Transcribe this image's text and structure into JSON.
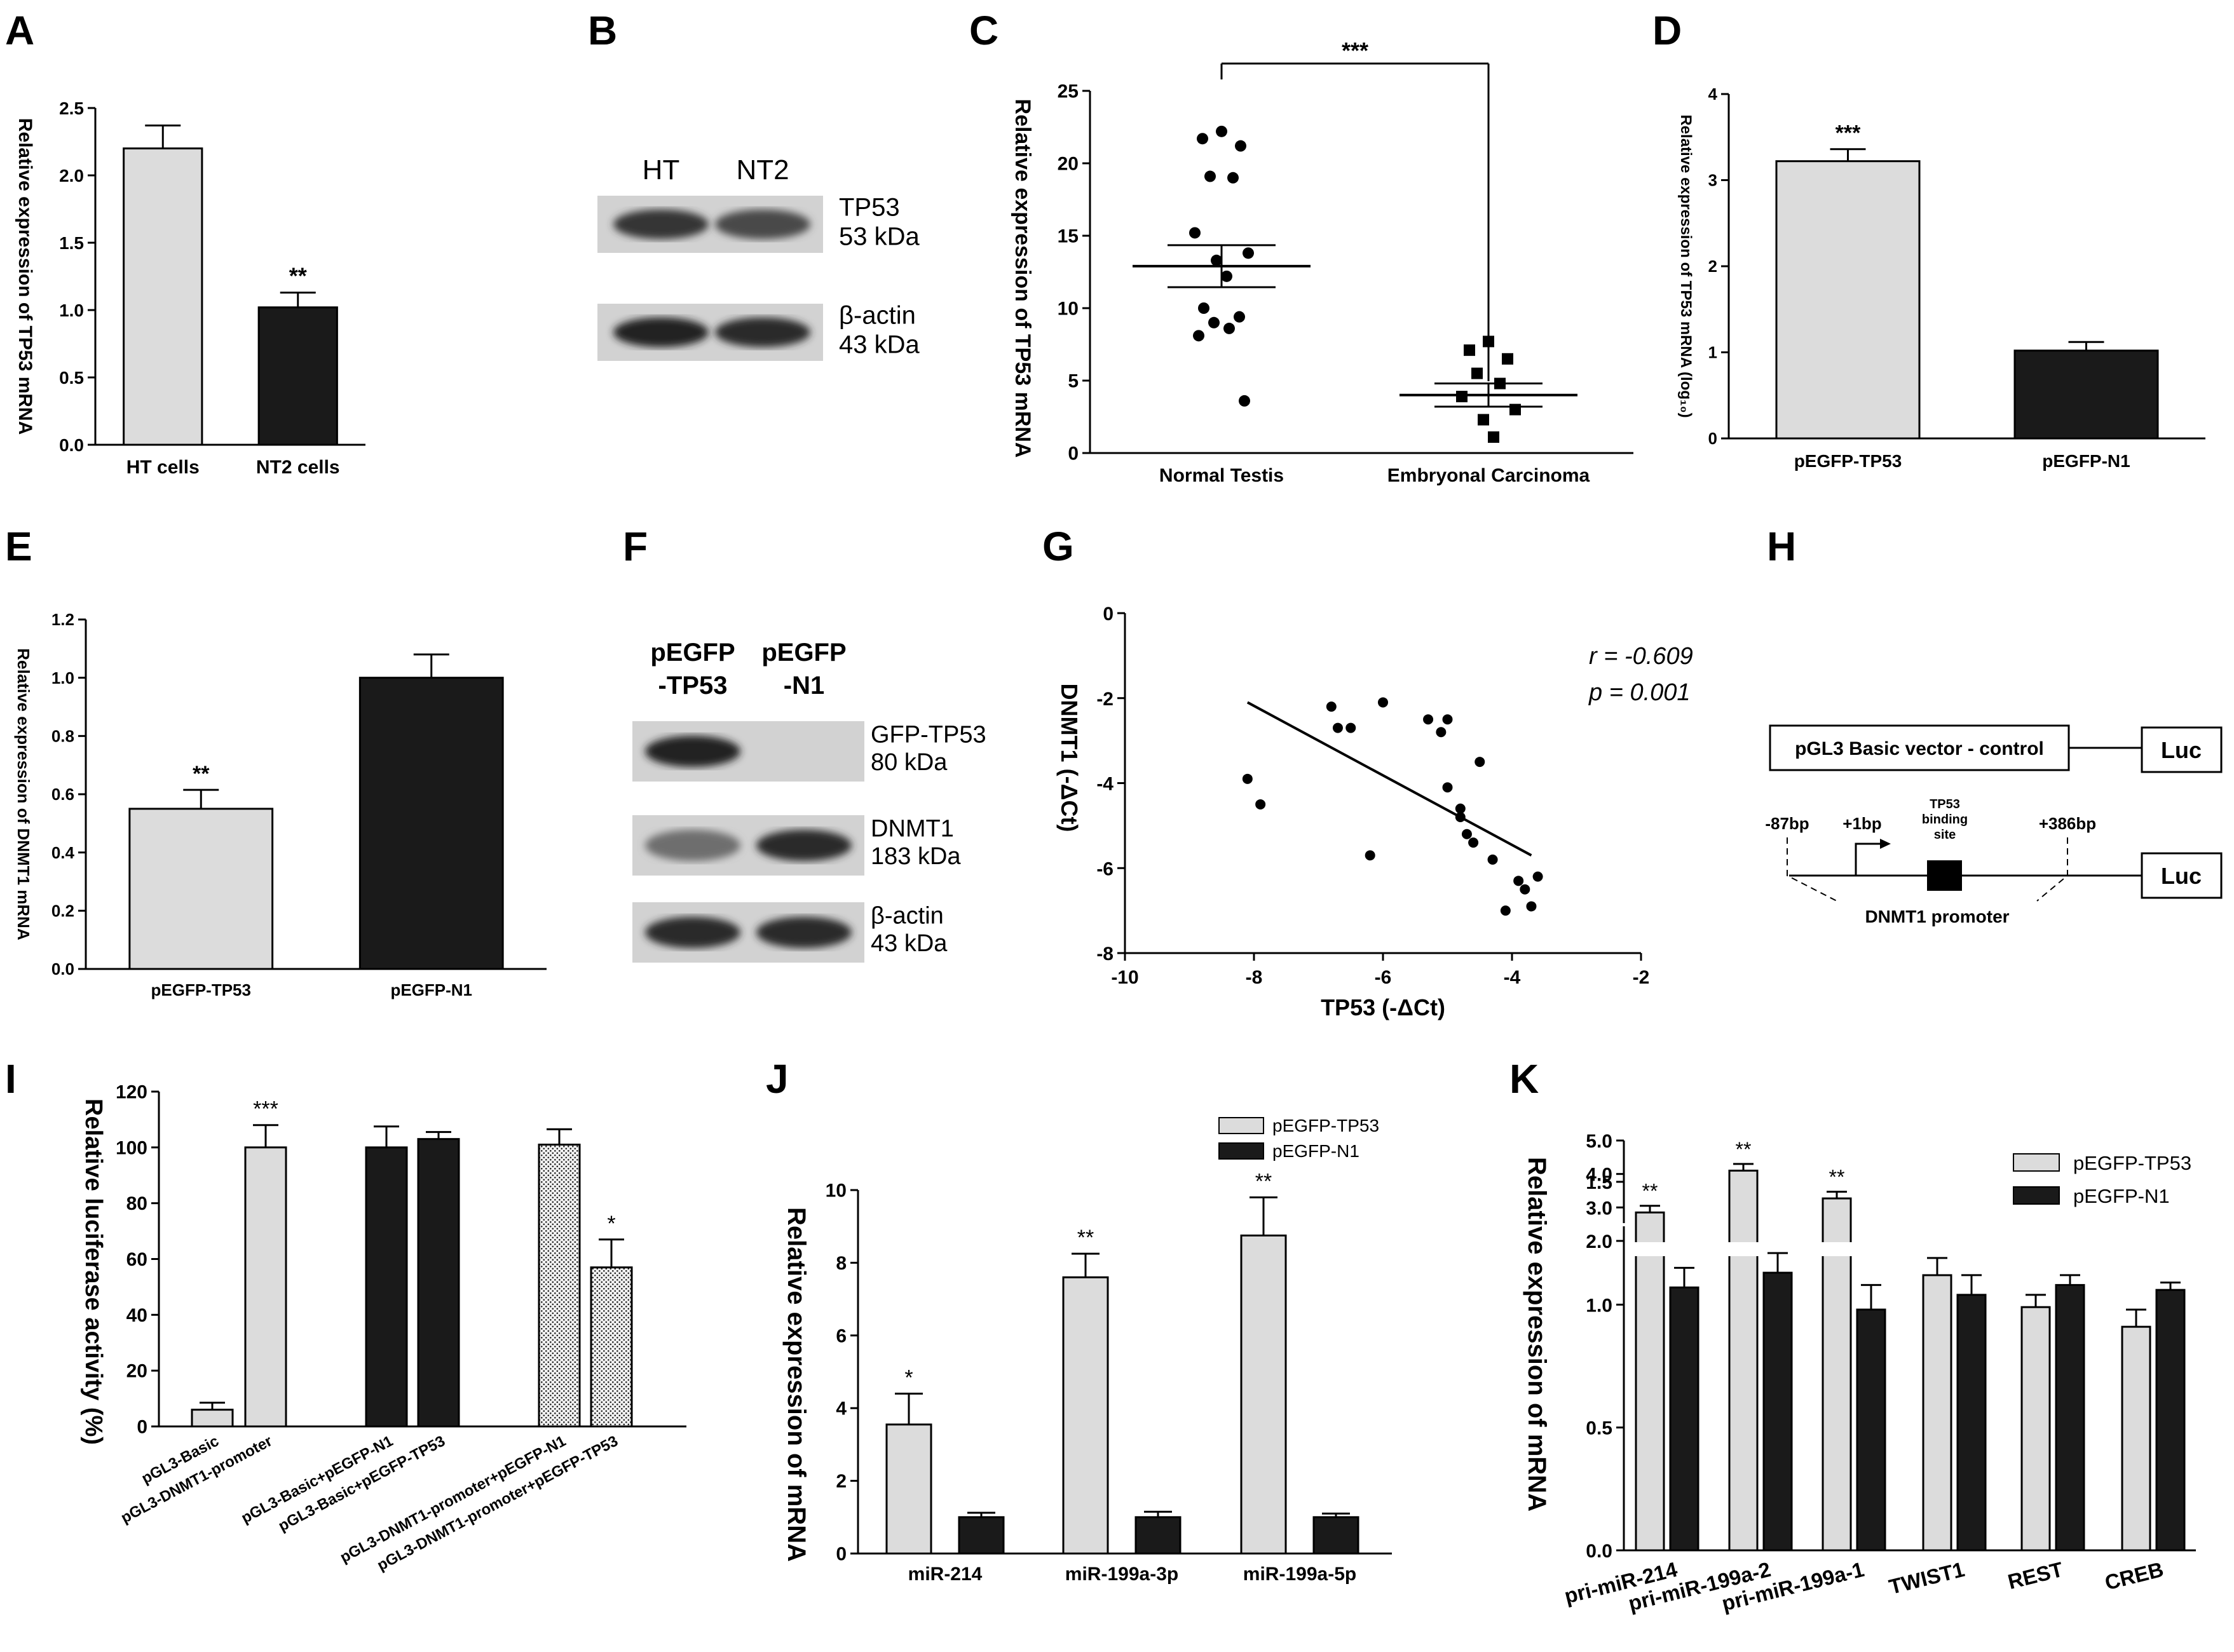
{
  "figure": {
    "panel_letters": [
      "A",
      "B",
      "C",
      "D",
      "E",
      "F",
      "G",
      "H",
      "I",
      "J",
      "K"
    ]
  },
  "chart_data": [
    {
      "panel": "A",
      "type": "bar",
      "ylabel": "Relative expression of TP53 mRNA",
      "xlabel": "",
      "ylim": [
        0,
        2.5
      ],
      "yticks": [
        "0.0",
        "0.5",
        "1.0",
        "1.5",
        "2.0",
        "2.5"
      ],
      "categories": [
        "HT cells",
        "NT2 cells"
      ],
      "values": [
        2.2,
        1.02
      ],
      "errors": [
        0.17,
        0.11
      ],
      "fills": [
        "#dcdcdc",
        "#1a1a1a"
      ],
      "annotations": [
        "",
        "**"
      ]
    },
    {
      "panel": "B",
      "type": "blot",
      "lanes": [
        "HT",
        "NT2"
      ],
      "bands": [
        {
          "name": "TP53",
          "size": "53 kDa",
          "intensity": [
            0.85,
            0.75
          ]
        },
        {
          "name": "β-actin",
          "size": "43 kDa",
          "intensity": [
            0.95,
            0.9
          ]
        }
      ]
    },
    {
      "panel": "C",
      "type": "scatter",
      "ylabel": "Relative expression of TP53 mRNA",
      "ylim": [
        0,
        25
      ],
      "yticks": [
        "0",
        "5",
        "10",
        "15",
        "20",
        "25"
      ],
      "categories": [
        "Normal Testis",
        "Embryonal Carcinoma"
      ],
      "series": [
        {
          "name": "Normal Testis",
          "values": [
            22.2,
            21.7,
            21.2,
            19.1,
            19.0,
            15.2,
            13.8,
            13.3,
            12.2,
            10.0,
            9.4,
            9.0,
            8.6,
            8.1,
            3.6
          ],
          "mean": 12.9,
          "sem": 1.45
        },
        {
          "name": "Embryonal Carcinoma",
          "values": [
            7.7,
            7.1,
            6.5,
            5.5,
            4.8,
            3.9,
            3.0,
            2.3,
            1.1
          ],
          "mean": 4.0,
          "sem": 0.8
        }
      ],
      "significance": "***"
    },
    {
      "panel": "D",
      "type": "bar",
      "ylabel": "Relative expression of TP53 mRNA (log₁₀)",
      "ylim": [
        0,
        4
      ],
      "yticks": [
        "0",
        "1",
        "2",
        "3",
        "4"
      ],
      "categories": [
        "pEGFP-TP53",
        "pEGFP-N1"
      ],
      "values": [
        3.22,
        1.02
      ],
      "errors": [
        0.14,
        0.1
      ],
      "fills": [
        "#dcdcdc",
        "#1a1a1a"
      ],
      "annotations": [
        "***",
        ""
      ]
    },
    {
      "panel": "E",
      "type": "bar",
      "ylabel": "Relative expression of DNMT1 mRNA",
      "ylim": [
        0,
        1.2
      ],
      "yticks": [
        "0.0",
        "0.2",
        "0.4",
        "0.6",
        "0.8",
        "1.0",
        "1.2"
      ],
      "categories": [
        "pEGFP-TP53",
        "pEGFP-N1"
      ],
      "values": [
        0.55,
        1.0
      ],
      "errors": [
        0.065,
        0.08
      ],
      "fills": [
        "#dcdcdc",
        "#1a1a1a"
      ],
      "annotations": [
        "**",
        ""
      ]
    },
    {
      "panel": "F",
      "type": "blot",
      "lanes": [
        "pEGFP\n-TP53",
        "pEGFP\n-N1"
      ],
      "bands": [
        {
          "name": "GFP-TP53",
          "size": "80 kDa",
          "intensity": [
            0.95,
            0.0
          ]
        },
        {
          "name": "DNMT1",
          "size": "183 kDa",
          "intensity": [
            0.55,
            0.9
          ]
        },
        {
          "name": "β-actin",
          "size": "43 kDa",
          "intensity": [
            0.9,
            0.9
          ]
        }
      ]
    },
    {
      "panel": "G",
      "type": "scatter",
      "xlabel": "TP53 (-ΔCt)",
      "ylabel": "DNMT1 (-ΔCt)",
      "xlim": [
        -10,
        -2
      ],
      "ylim": [
        -8,
        0
      ],
      "xticks": [
        "-10",
        "-8",
        "-6",
        "-4",
        "-2"
      ],
      "yticks": [
        "0",
        "-2",
        "-4",
        "-6",
        "-8"
      ],
      "points": [
        [
          -8.1,
          -3.9
        ],
        [
          -7.9,
          -4.5
        ],
        [
          -6.8,
          -2.2
        ],
        [
          -6.7,
          -2.7
        ],
        [
          -6.5,
          -2.7
        ],
        [
          -6.2,
          -5.7
        ],
        [
          -6.0,
          -2.1
        ],
        [
          -5.3,
          -2.5
        ],
        [
          -5.1,
          -2.8
        ],
        [
          -5.0,
          -2.5
        ],
        [
          -5.0,
          -4.1
        ],
        [
          -4.8,
          -4.6
        ],
        [
          -4.8,
          -4.8
        ],
        [
          -4.7,
          -5.2
        ],
        [
          -4.6,
          -5.4
        ],
        [
          -4.5,
          -3.5
        ],
        [
          -4.3,
          -5.8
        ],
        [
          -4.1,
          -7.0
        ],
        [
          -3.9,
          -6.3
        ],
        [
          -3.8,
          -6.5
        ],
        [
          -3.7,
          -6.9
        ],
        [
          -3.6,
          -6.2
        ]
      ],
      "fit": {
        "x1": -8.1,
        "y1": -2.1,
        "x2": -3.7,
        "y2": -5.7
      },
      "stats": [
        "r = -0.609",
        "p = 0.001"
      ]
    },
    {
      "panel": "H",
      "type": "diagram",
      "control_label": "pGL3 Basic vector - control",
      "luc_label": "Luc",
      "pos_start": "-87bp",
      "pos_tss": "+1bp",
      "pos_end": "+386bp",
      "binding_site": [
        "TP53",
        "binding",
        "site"
      ],
      "promoter_label": "DNMT1 promoter"
    },
    {
      "panel": "I",
      "type": "bar",
      "ylabel": "Relative luciferase activity (%)",
      "ylim": [
        0,
        120
      ],
      "yticks": [
        "0",
        "20",
        "40",
        "60",
        "80",
        "100",
        "120"
      ],
      "categories": [
        "pGL3-Basic",
        "pGL3-DNMT1-promoter",
        "pGL3-Basic+pEGFP-N1",
        "pGL3-Basic+pEGFP-TP53",
        "pGL3-DNMT1-promoter+pEGFP-N1",
        "pGL3-DNMT1-promoter+pEGFP-TP53"
      ],
      "values": [
        6,
        100,
        100,
        103,
        101,
        57
      ],
      "errors": [
        2.5,
        8,
        7.5,
        2.5,
        5.5,
        10
      ],
      "fills": [
        "light",
        "light",
        "dark",
        "dark",
        "hatch",
        "hatch"
      ],
      "annotations": [
        "",
        "***",
        "",
        "",
        "",
        "*"
      ]
    },
    {
      "panel": "J",
      "type": "bar",
      "ylabel": "Relative expression of mRNA",
      "ylim": [
        0,
        10
      ],
      "yticks": [
        "0",
        "2",
        "4",
        "6",
        "8",
        "10"
      ],
      "categories": [
        "miR-214",
        "miR-199a-3p",
        "miR-199a-5p"
      ],
      "series": [
        {
          "name": "pEGFP-TP53",
          "values": [
            3.55,
            7.6,
            8.75
          ],
          "errors": [
            0.85,
            0.65,
            1.05
          ]
        },
        {
          "name": "pEGFP-N1",
          "values": [
            1.0,
            1.0,
            1.0
          ],
          "errors": [
            0.12,
            0.15,
            0.1
          ]
        }
      ],
      "annotations": [
        "*",
        "**",
        "**"
      ]
    },
    {
      "panel": "K",
      "type": "bar",
      "broken_axis": true,
      "ylabel": "Relative expression of mRNA",
      "ylim_low": [
        0,
        1.5
      ],
      "ylim_high": [
        2.0,
        5.0
      ],
      "yticks_low": [
        "0.0",
        "0.5",
        "1.0",
        "1.5"
      ],
      "yticks_high": [
        "2.0",
        "3.0",
        "4.0",
        "5.0"
      ],
      "categories": [
        "pri-miR-214",
        "pri-miR-199a-2",
        "pri-miR-199a-1",
        "TWIST1",
        "REST",
        "CREB"
      ],
      "series": [
        {
          "name": "pEGFP-TP53",
          "values": [
            2.85,
            4.1,
            3.27,
            1.12,
            0.99,
            0.91
          ],
          "errors": [
            0.2,
            0.2,
            0.2,
            0.07,
            0.05,
            0.07
          ]
        },
        {
          "name": "pEGFP-N1",
          "values": [
            1.07,
            1.13,
            0.98,
            1.04,
            1.08,
            1.06
          ],
          "errors": [
            0.08,
            0.08,
            0.1,
            0.08,
            0.04,
            0.03
          ]
        }
      ],
      "annotations": [
        "**",
        "**",
        "**",
        "",
        "",
        ""
      ]
    }
  ]
}
